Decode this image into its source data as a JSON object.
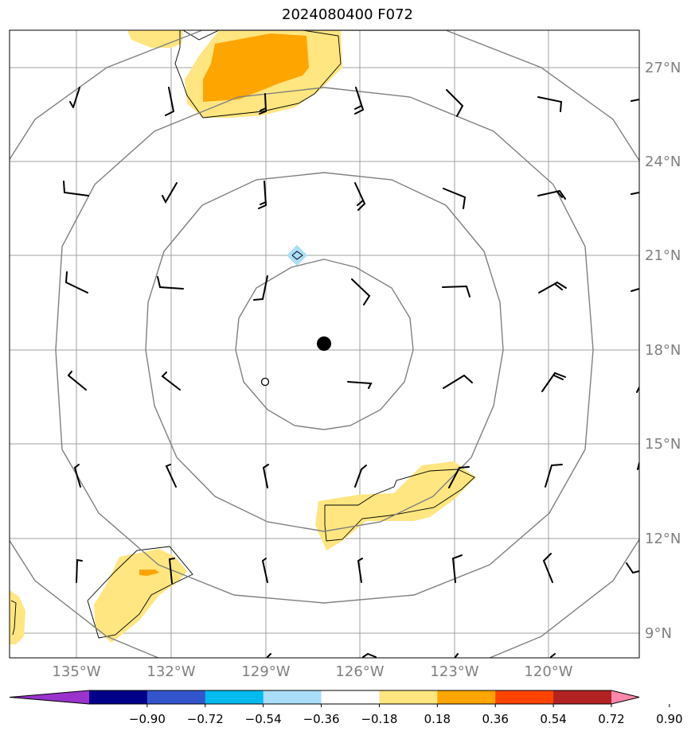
{
  "title": "2024080400 F072",
  "lon_labels": [
    "135°W",
    "132°W",
    "129°W",
    "126°W",
    "123°W",
    "120°W"
  ],
  "lat_labels": [
    "27°N",
    "24°N",
    "21°N",
    "18°N",
    "15°N",
    "12°N",
    "9°N"
  ],
  "colorbar": {
    "ticks": [
      "−0.90",
      "−0.72",
      "−0.54",
      "−0.36",
      "−0.18",
      "0.18",
      "0.36",
      "0.54",
      "0.72",
      "0.90"
    ],
    "colors": [
      "#9933cc",
      "#000088",
      "#3355cc",
      "#00bbee",
      "#aaddf8",
      "#ffffff",
      "#ffe680",
      "#ffa500",
      "#ff4400",
      "#b22222",
      "#ff88aa"
    ]
  },
  "colors": {
    "grid": "#a0a0a0",
    "range_rings": "#808080",
    "contour_light": "#ffe680",
    "contour_dark": "#ffa500",
    "contour_neg": "#aaddf8"
  },
  "map": {
    "center_marker": "storm-center",
    "range_rings": 4
  }
}
